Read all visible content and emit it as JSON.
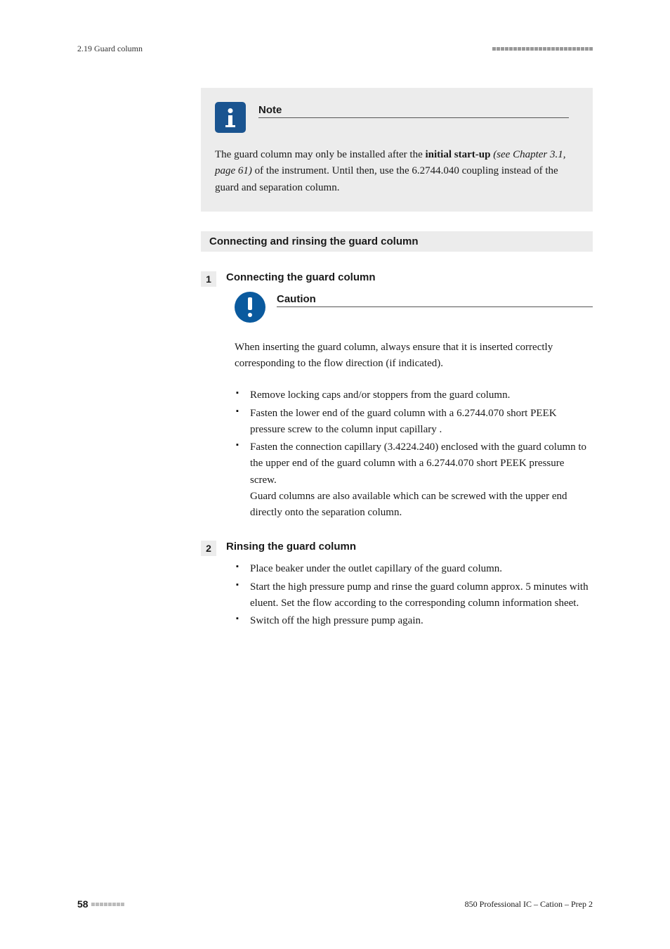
{
  "header": {
    "section_ref": "2.19 Guard column",
    "dot_count": 24
  },
  "note": {
    "label": "Note",
    "body_prefix": "The guard column may only be installed after the ",
    "body_bold": "initial start-up",
    "body_italic": " (see Chapter 3.1, page 61)",
    "body_suffix": " of the instrument. Until then, use the 6.2744.040 coupling instead of the guard and separation column."
  },
  "section_heading": "Connecting and rinsing the guard column",
  "steps": [
    {
      "num": "1",
      "title": "Connecting the guard column",
      "caution": {
        "label": "Caution",
        "body": "When inserting the guard column, always ensure that it is inserted correctly corresponding to the flow direction (if indicated)."
      },
      "bullets": [
        "Remove locking caps and/or stoppers from the guard column.",
        "Fasten the lower end of the guard column with a 6.2744.070 short PEEK pressure screw to the column input capillary .",
        "Fasten the connection capillary (3.4224.240) enclosed with the guard column to the upper end of the guard column with a 6.2744.070 short PEEK pressure screw.\nGuard columns are also available which can be screwed with the upper end directly onto the separation column."
      ]
    },
    {
      "num": "2",
      "title": "Rinsing the guard column",
      "bullets": [
        "Place beaker under the outlet capillary of the guard column.",
        "Start the high pressure pump and rinse the guard column approx. 5 minutes with eluent. Set the flow according to the corresponding column information sheet.",
        "Switch off the high pressure pump again."
      ]
    }
  ],
  "footer": {
    "page": "58",
    "dot_count": 8,
    "doc": "850 Professional IC – Cation – Prep 2"
  }
}
